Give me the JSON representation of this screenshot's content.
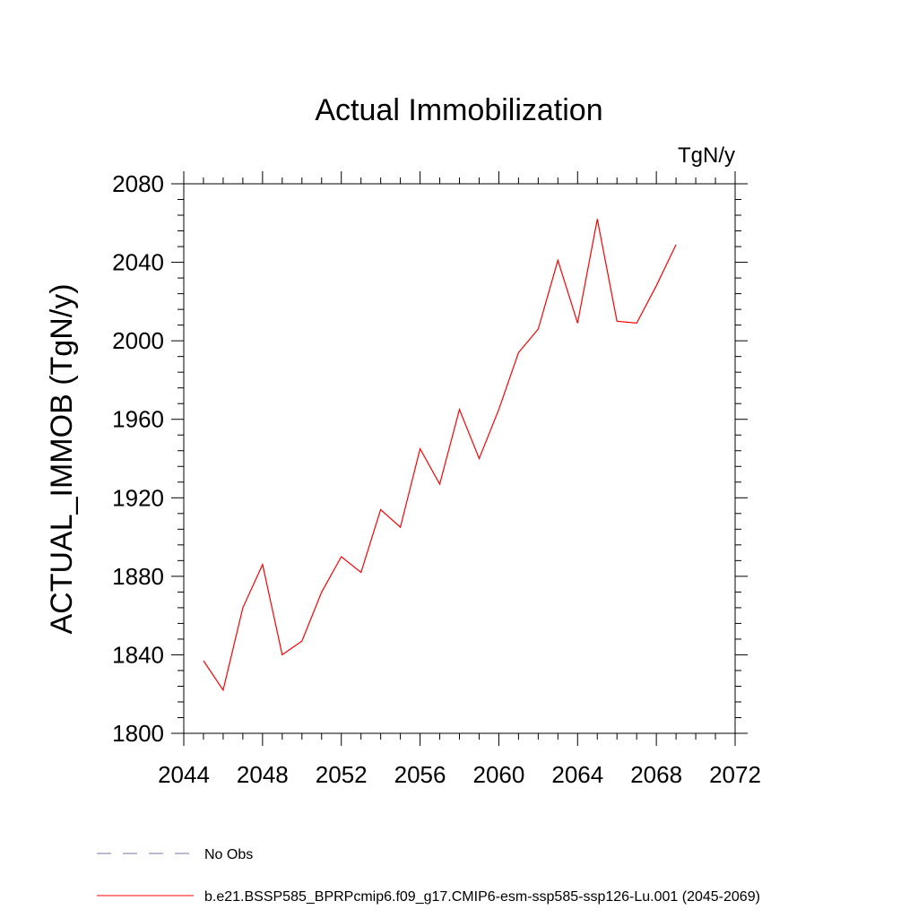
{
  "chart_data": {
    "type": "line",
    "title": "Actual Immobilization",
    "units": "TgN/y",
    "ylabel": "ACTUAL_IMMOB  (TgN/y)",
    "xlabel": "",
    "xlim": [
      2044,
      2072
    ],
    "ylim": [
      1800,
      2080
    ],
    "xticks": [
      2044,
      2048,
      2052,
      2056,
      2060,
      2064,
      2068,
      2072
    ],
    "yticks": [
      1800,
      1840,
      1880,
      1920,
      1960,
      2000,
      2040,
      2080
    ],
    "grid": false,
    "legend_position": "bottom-left",
    "series": [
      {
        "name": "b.e21.BSSP585_BPRPcmip6.f09_g17.CMIP6-esm-ssp585-ssp126-Lu.001 (2045-2069)",
        "color": "#ff0000",
        "style": "solid",
        "x": [
          2045,
          2046,
          2047,
          2048,
          2049,
          2050,
          2051,
          2052,
          2053,
          2054,
          2055,
          2056,
          2057,
          2058,
          2059,
          2060,
          2061,
          2062,
          2063,
          2064,
          2065,
          2066,
          2067,
          2068,
          2069
        ],
        "values": [
          1837,
          1822,
          1864,
          1886,
          1840,
          1847,
          1872,
          1890,
          1882,
          1914,
          1905,
          1945,
          1927,
          1965,
          1940,
          1965,
          1994,
          2006,
          2041,
          2009,
          2062,
          2010,
          2009,
          2028,
          2049
        ]
      }
    ],
    "legend": [
      {
        "label": "No Obs",
        "color": "#7777aa",
        "style": "dashed"
      },
      {
        "label": "b.e21.BSSP585_BPRPcmip6.f09_g17.CMIP6-esm-ssp585-ssp126-Lu.001 (2045-2069)",
        "color": "#ff0000",
        "style": "solid"
      }
    ]
  }
}
